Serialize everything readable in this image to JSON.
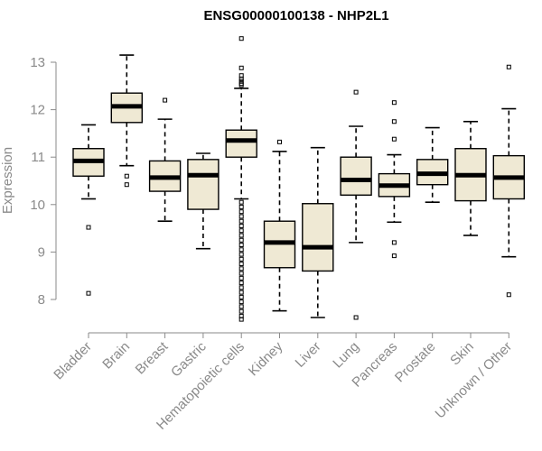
{
  "chart_data": {
    "type": "boxplot",
    "title": "ENSG00000100138 - NHP2L1",
    "xlabel": "",
    "ylabel": "Expression",
    "ylim": [
      7.5,
      13.6
    ],
    "yticks": [
      8,
      9,
      10,
      11,
      12,
      13
    ],
    "box_fill": "#efe9d4",
    "categories": [
      "Bladder",
      "Brain",
      "Breast",
      "Gastric",
      "Hematopoietic cells",
      "Kidney",
      "Liver",
      "Lung",
      "Pancreas",
      "Prostate",
      "Skin",
      "Unknown / Other"
    ],
    "boxes": [
      {
        "label": "Bladder",
        "whisker_low": 10.12,
        "q1": 10.6,
        "median": 10.92,
        "q3": 11.18,
        "whisker_high": 11.68,
        "outliers": [
          9.52,
          8.13
        ]
      },
      {
        "label": "Brain",
        "whisker_low": 10.82,
        "q1": 11.73,
        "median": 12.07,
        "q3": 12.35,
        "whisker_high": 13.15,
        "outliers": [
          10.6,
          10.42
        ]
      },
      {
        "label": "Breast",
        "whisker_low": 9.65,
        "q1": 10.28,
        "median": 10.57,
        "q3": 10.92,
        "whisker_high": 11.8,
        "outliers": [
          12.2
        ]
      },
      {
        "label": "Gastric",
        "whisker_low": 9.07,
        "q1": 9.9,
        "median": 10.62,
        "q3": 10.95,
        "whisker_high": 11.08,
        "outliers": []
      },
      {
        "label": "Hematopoietic cells",
        "whisker_low": 10.12,
        "q1": 11.0,
        "median": 11.35,
        "q3": 11.57,
        "whisker_high": 12.45,
        "outliers": [
          13.5,
          12.88,
          12.72,
          12.65,
          12.6,
          12.55,
          12.52,
          10.05,
          9.95,
          9.85,
          9.75,
          9.65,
          9.55,
          9.45,
          9.35,
          9.25,
          9.15,
          9.05,
          8.95,
          8.85,
          8.75,
          8.65,
          8.55,
          8.45,
          8.35,
          8.25,
          8.15,
          8.05,
          7.95,
          7.85,
          7.75,
          7.65,
          7.58
        ]
      },
      {
        "label": "Kidney",
        "whisker_low": 7.76,
        "q1": 8.67,
        "median": 9.2,
        "q3": 9.65,
        "whisker_high": 11.12,
        "outliers": [
          11.32
        ]
      },
      {
        "label": "Liver",
        "whisker_low": 7.62,
        "q1": 8.6,
        "median": 9.1,
        "q3": 10.02,
        "whisker_high": 11.2,
        "outliers": []
      },
      {
        "label": "Lung",
        "whisker_low": 9.2,
        "q1": 10.2,
        "median": 10.52,
        "q3": 11.0,
        "whisker_high": 11.65,
        "outliers": [
          12.37,
          7.62
        ]
      },
      {
        "label": "Pancreas",
        "whisker_low": 9.63,
        "q1": 10.17,
        "median": 10.4,
        "q3": 10.65,
        "whisker_high": 11.05,
        "outliers": [
          12.15,
          11.75,
          11.38,
          9.2,
          8.92
        ]
      },
      {
        "label": "Prostate",
        "whisker_low": 10.05,
        "q1": 10.42,
        "median": 10.65,
        "q3": 10.95,
        "whisker_high": 11.62,
        "outliers": []
      },
      {
        "label": "Skin",
        "whisker_low": 9.35,
        "q1": 10.08,
        "median": 10.62,
        "q3": 11.18,
        "whisker_high": 11.75,
        "outliers": []
      },
      {
        "label": "Unknown / Other",
        "whisker_low": 8.9,
        "q1": 10.12,
        "median": 10.57,
        "q3": 11.03,
        "whisker_high": 12.02,
        "outliers": [
          12.9,
          8.1
        ]
      }
    ]
  }
}
